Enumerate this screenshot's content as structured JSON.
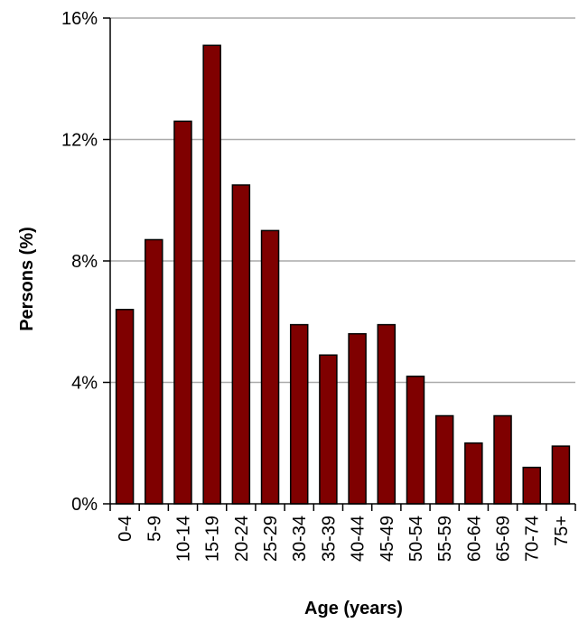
{
  "chart_data": {
    "type": "bar",
    "title": "",
    "xlabel": "Age (years)",
    "ylabel": "Persons (%)",
    "categories": [
      "0-4",
      "5-9",
      "10-14",
      "15-19",
      "20-24",
      "25-29",
      "30-34",
      "35-39",
      "40-44",
      "45-49",
      "50-54",
      "55-59",
      "60-64",
      "65-69",
      "70-74",
      "75+"
    ],
    "values": [
      6.4,
      8.7,
      12.6,
      15.1,
      10.5,
      9.0,
      5.9,
      4.9,
      5.6,
      5.9,
      4.2,
      2.9,
      2.0,
      2.9,
      1.2,
      1.9
    ],
    "ylim": [
      0,
      16
    ],
    "yticks": [
      0,
      4,
      8,
      12,
      16
    ],
    "ytick_labels": [
      "0%",
      "4%",
      "8%",
      "12%",
      "16%"
    ],
    "grid": true,
    "legend": "none",
    "bar_color": "#7f0000",
    "grid_color": "#aaaaaa"
  }
}
